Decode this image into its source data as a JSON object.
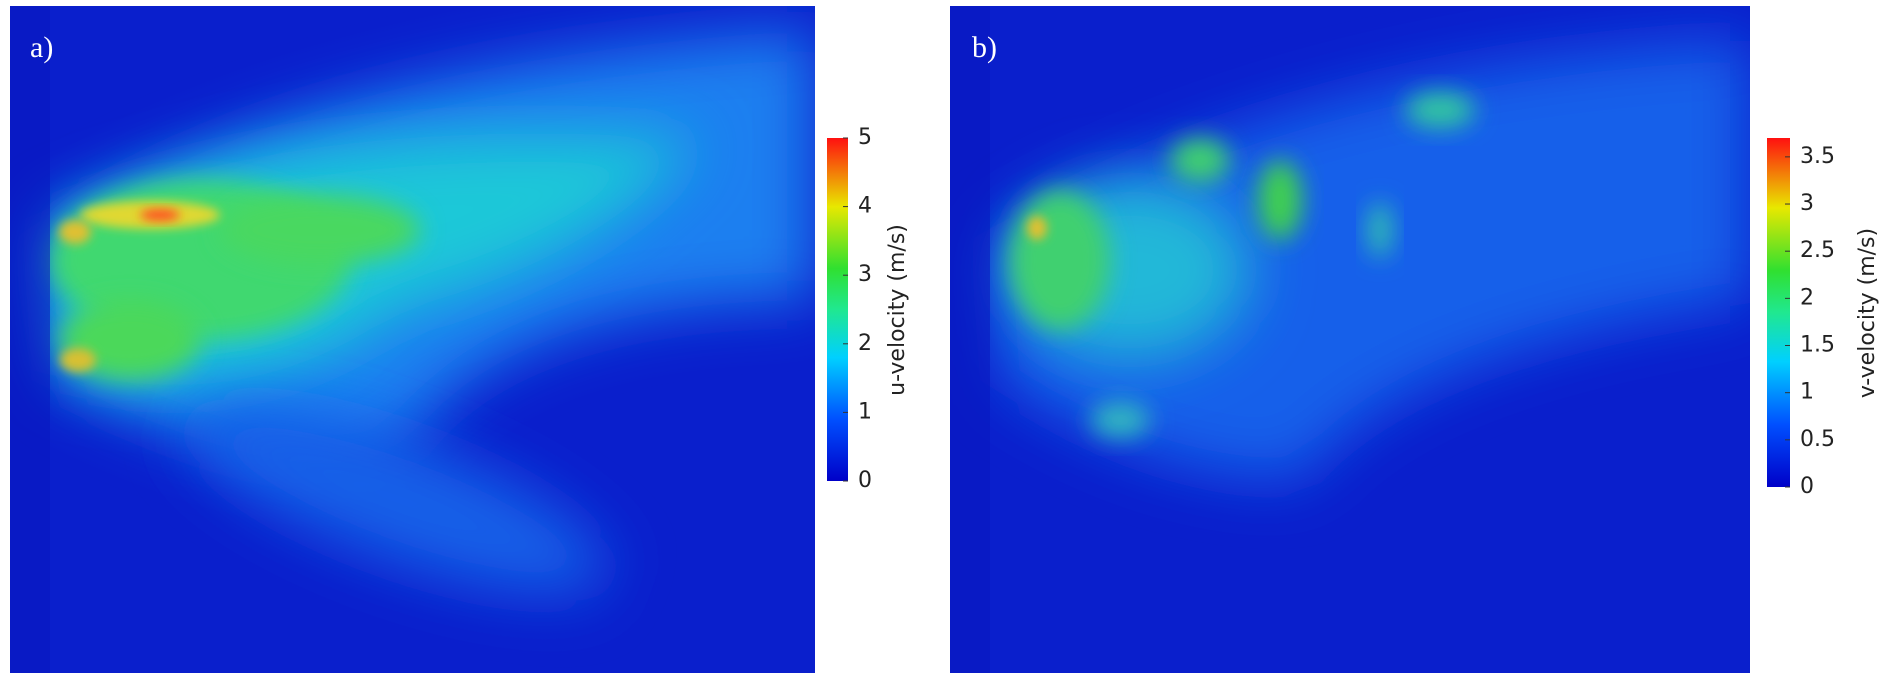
{
  "panels": [
    {
      "label": "a)",
      "colorbar_title": "u-velocity (m/s)",
      "clim": [
        0,
        5
      ],
      "ticks": [
        0,
        1,
        2,
        3,
        4,
        5
      ]
    },
    {
      "label": "b)",
      "colorbar_title": "v-velocity (m/s)",
      "clim": [
        0,
        3.7
      ],
      "ticks": [
        0,
        0.5,
        1,
        1.5,
        2,
        2.5,
        3,
        3.5
      ]
    }
  ]
}
